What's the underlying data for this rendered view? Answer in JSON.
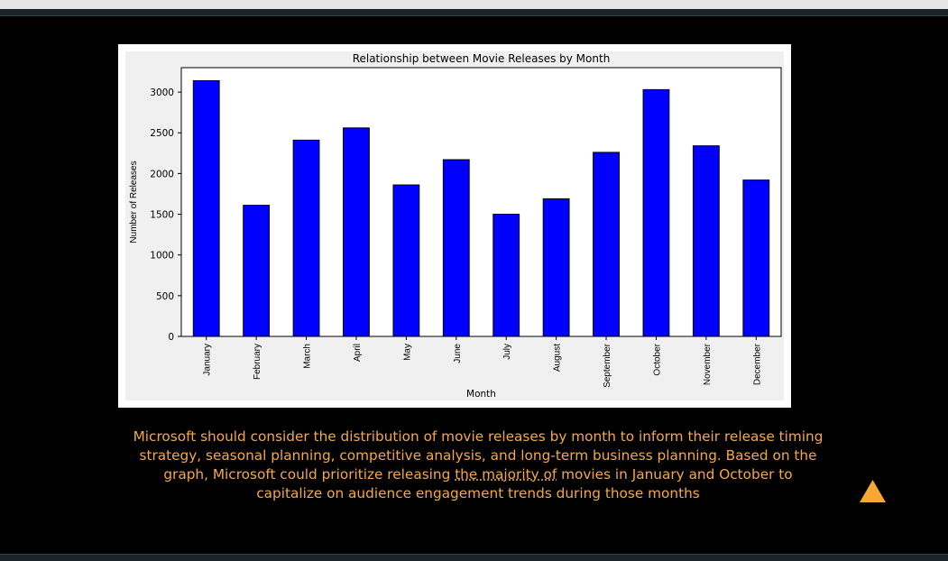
{
  "caption": {
    "part1": "Microsoft should consider the distribution of movie releases by month to inform their release timing strategy, seasonal planning, competitive analysis, and long-term business planning. Based on the graph, Microsoft could prioritize releasing ",
    "underlined": "the majority of",
    "part2": " movies in January and October to capitalize on audience engagement trends during those months"
  },
  "colors": {
    "caption": "#f3a84a",
    "bar_fill": "#0000ff",
    "scroll_button": "#f7a733",
    "page_background": "#000000"
  },
  "icons": {
    "scroll_top": "triangle-up-icon"
  },
  "chart_data": {
    "type": "bar",
    "title": "Relationship between Movie Releases by Month",
    "xlabel": "Month",
    "ylabel": "Number of Releases",
    "categories": [
      "January",
      "February",
      "March",
      "April",
      "May",
      "June",
      "July",
      "August",
      "September",
      "October",
      "November",
      "December"
    ],
    "values": [
      3140,
      1610,
      2410,
      2560,
      1860,
      2170,
      1500,
      1690,
      2260,
      3030,
      2340,
      1920
    ],
    "ylim": [
      0,
      3300
    ],
    "yticks": [
      0,
      500,
      1000,
      1500,
      2000,
      2500,
      3000
    ],
    "grid": false,
    "legend": "none"
  }
}
